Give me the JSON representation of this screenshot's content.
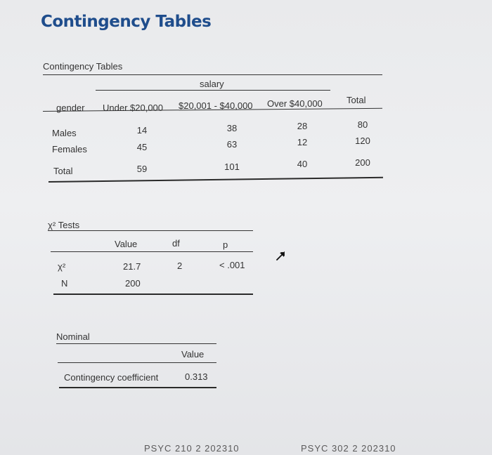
{
  "page_title": "Contingency Tables",
  "contingency": {
    "section_title": "Contingency Tables",
    "group_header": "salary",
    "row_var": "gender",
    "columns": [
      "Under $20,000",
      "$20,001 - $40,000",
      "Over $40,000",
      "Total"
    ],
    "rows": [
      {
        "label": "Males",
        "values": [
          "14",
          "38",
          "28",
          "80"
        ]
      },
      {
        "label": "Females",
        "values": [
          "45",
          "63",
          "12",
          "120"
        ]
      },
      {
        "label": "Total",
        "values": [
          "59",
          "101",
          "40",
          "200"
        ]
      }
    ]
  },
  "chi_tests": {
    "section_title": "χ² Tests",
    "columns": [
      "Value",
      "df",
      "p"
    ],
    "rows": [
      {
        "label": "χ²",
        "value": "21.7",
        "df": "2",
        "p": "< .001"
      },
      {
        "label": "N",
        "value": "200",
        "df": "",
        "p": ""
      }
    ]
  },
  "nominal": {
    "section_title": "Nominal",
    "column": "Value",
    "rows": [
      {
        "label": "Contingency coefficient",
        "value": "0.313"
      }
    ]
  },
  "footer": {
    "left": "PSYC 210 2 202310",
    "right": "PSYC 302 2 202310"
  }
}
